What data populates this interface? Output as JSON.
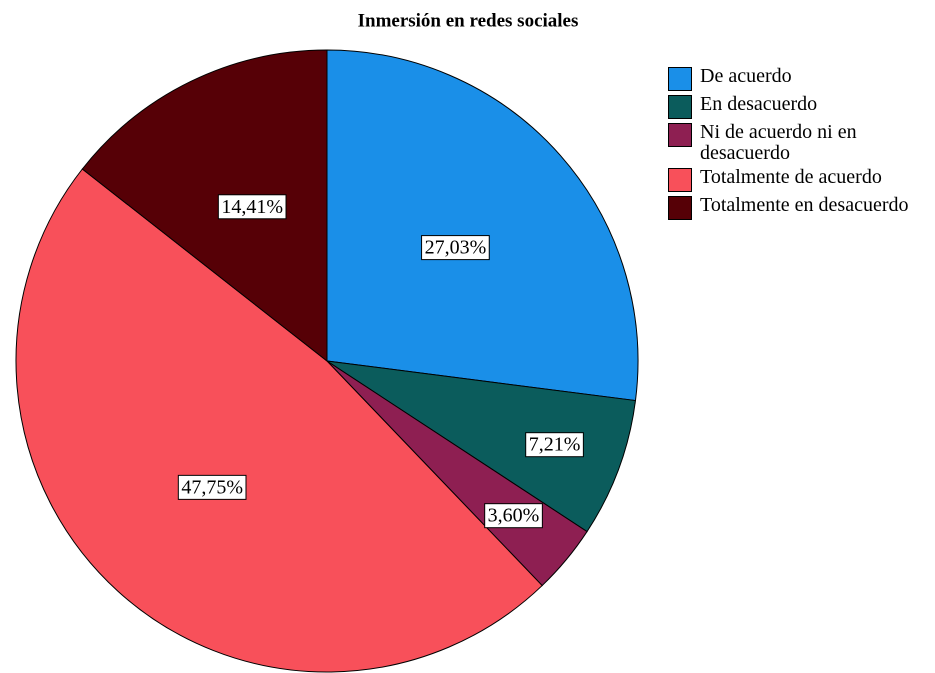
{
  "chart_data": {
    "type": "pie",
    "title": "Inmersión en redes sociales",
    "categories": [
      "De acuerdo",
      "En desacuerdo",
      "Ni de acuerdo ni en desacuerdo",
      "Totalmente de acuerdo",
      "Totalmente en desacuerdo"
    ],
    "values": [
      27.03,
      7.21,
      3.6,
      47.75,
      14.41
    ],
    "value_labels": [
      "27,03%",
      "7,21%",
      "3,60%",
      "47,75%",
      "14,41%"
    ],
    "colors": [
      "#1a8fe8",
      "#0b5c5c",
      "#8e1f52",
      "#f8505a",
      "#560006"
    ],
    "legend": "right"
  }
}
